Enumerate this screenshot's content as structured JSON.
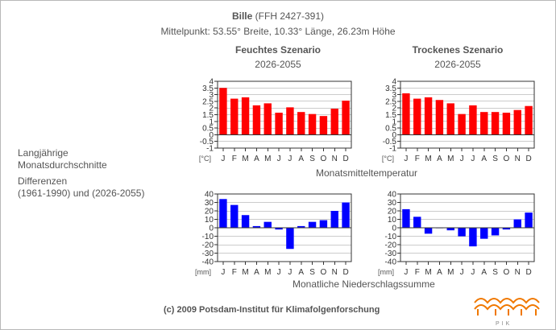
{
  "header": {
    "site_name": "Bille",
    "site_code": "(FFH 2427-391)",
    "center_info": "Mittelpunkt: 53.55° Breite, 10.33° Länge, 26.23m Höhe"
  },
  "scenarios": {
    "wet": {
      "title": "Feuchtes Szenario",
      "period": "2026-2055"
    },
    "dry": {
      "title": "Trockenes Szenario",
      "period": "2026-2055"
    }
  },
  "left_labels": {
    "line1": "Langjährige",
    "line2": "Monatsdurchschnitte",
    "line3": "Differenzen",
    "line4": "(1961-1990) und (2026-2055)"
  },
  "row_labels": {
    "temperature": "Monatsmitteltemperatur",
    "precipitation": "Monatliche Niederschlagssumme"
  },
  "footer": {
    "copyright": "(c) 2009 Potsdam-Institut für Klimafolgenforschung",
    "logo_text": "PIK"
  },
  "colors": {
    "temperature_bar": "#ff0000",
    "precipitation_bar": "#0000ff",
    "text": "#555555",
    "axis": "#333333",
    "grid": "#999999"
  },
  "chart_data": [
    {
      "id": "temp-wet",
      "type": "bar",
      "title": "Feuchtes Szenario 2026-2055",
      "unit_label": "[°C]",
      "categories": [
        "J",
        "F",
        "M",
        "A",
        "M",
        "J",
        "J",
        "A",
        "S",
        "O",
        "N",
        "D"
      ],
      "values": [
        3.5,
        2.7,
        2.8,
        2.2,
        2.35,
        1.65,
        2.05,
        1.7,
        1.55,
        1.4,
        1.95,
        2.55
      ],
      "ylim": [
        -1,
        4
      ],
      "yticks": [
        -1,
        -0.5,
        0,
        0.5,
        1,
        1.5,
        2,
        2.5,
        3,
        3.5,
        4
      ],
      "ytick_labels": [
        "-1",
        "-0.5",
        "0",
        "0.5",
        "1",
        "1.5",
        "2",
        "2.5",
        "3",
        "3.5",
        "4"
      ],
      "color": "#ff0000"
    },
    {
      "id": "temp-dry",
      "type": "bar",
      "title": "Trockenes Szenario 2026-2055",
      "unit_label": "[°C]",
      "categories": [
        "J",
        "F",
        "M",
        "A",
        "M",
        "J",
        "J",
        "A",
        "S",
        "O",
        "N",
        "D"
      ],
      "values": [
        3.1,
        2.7,
        2.8,
        2.6,
        2.35,
        1.55,
        2.2,
        1.7,
        1.7,
        1.65,
        1.85,
        2.15
      ],
      "ylim": [
        -1,
        4
      ],
      "yticks": [
        -1,
        -0.5,
        0,
        0.5,
        1,
        1.5,
        2,
        2.5,
        3,
        3.5,
        4
      ],
      "ytick_labels": [
        "-1",
        "-0.5",
        "0",
        "0.5",
        "1",
        "1.5",
        "2",
        "2.5",
        "3",
        "3.5",
        "4"
      ],
      "color": "#ff0000"
    },
    {
      "id": "prec-wet",
      "type": "bar",
      "title": "Feuchtes Szenario 2026-2055",
      "unit_label": "[mm]",
      "categories": [
        "J",
        "F",
        "M",
        "A",
        "M",
        "J",
        "J",
        "A",
        "S",
        "O",
        "N",
        "D"
      ],
      "values": [
        34,
        27,
        15,
        2,
        7,
        -2,
        -25,
        2,
        7,
        9,
        20,
        30
      ],
      "ylim": [
        -40,
        40
      ],
      "yticks": [
        -40,
        -30,
        -20,
        -10,
        0,
        10,
        20,
        30,
        40
      ],
      "ytick_labels": [
        "-40",
        "-30",
        "-20",
        "-10",
        "0",
        "10",
        "20",
        "30",
        "40"
      ],
      "color": "#0000ff"
    },
    {
      "id": "prec-dry",
      "type": "bar",
      "title": "Trockenes Szenario 2026-2055",
      "unit_label": "[mm]",
      "categories": [
        "J",
        "F",
        "M",
        "A",
        "M",
        "J",
        "J",
        "A",
        "S",
        "O",
        "N",
        "D"
      ],
      "values": [
        22,
        13,
        -7,
        0,
        -3,
        -10,
        -22,
        -13,
        -9,
        -2,
        10,
        18
      ],
      "ylim": [
        -40,
        40
      ],
      "yticks": [
        -40,
        -30,
        -20,
        -10,
        0,
        10,
        20,
        30,
        40
      ],
      "ytick_labels": [
        "-40",
        "-30",
        "-20",
        "-10",
        "0",
        "10",
        "20",
        "30",
        "40"
      ],
      "color": "#0000ff"
    }
  ]
}
